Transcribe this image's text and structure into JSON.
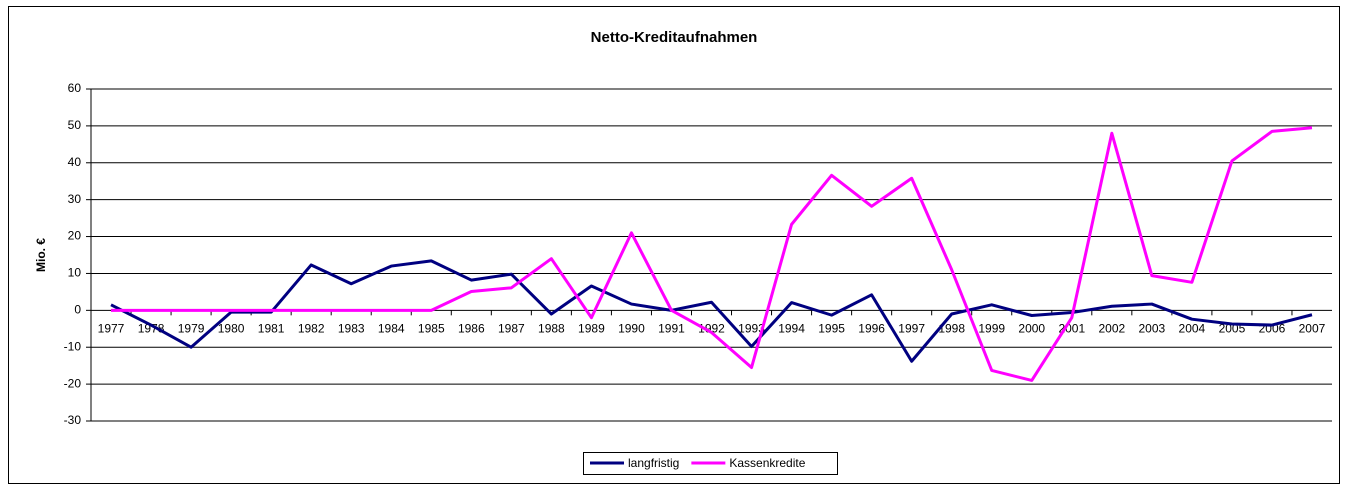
{
  "chart_data": {
    "type": "line",
    "title": "Netto-Kreditaufnahmen",
    "y_label": "Mio. €",
    "categories": [
      "1977",
      "1978",
      "1979",
      "1980",
      "1981",
      "1982",
      "1983",
      "1984",
      "1985",
      "1986",
      "1987",
      "1988",
      "1989",
      "1990",
      "1991",
      "1992",
      "1993",
      "1994",
      "1995",
      "1996",
      "1997",
      "1998",
      "1999",
      "2000",
      "2001",
      "2002",
      "2003",
      "2004",
      "2005",
      "2006",
      "2007"
    ],
    "series": [
      {
        "name": "langfristig",
        "color": "#000080",
        "values": [
          1.5,
          -4,
          -10,
          -0.5,
          -0.5,
          12.3,
          7.2,
          12,
          13.4,
          8.2,
          9.8,
          -1,
          6.6,
          1.7,
          0,
          2.2,
          -9.8,
          2.1,
          -1.3,
          4.2,
          -13.8,
          -1,
          1.5,
          -1.4,
          -0.6,
          1.1,
          1.7,
          -2.4,
          -3.7,
          -4,
          -1.2
        ]
      },
      {
        "name": "Kassenkredite",
        "color": "#ff00ff",
        "values": [
          0,
          0,
          0,
          0,
          0,
          0,
          0,
          0,
          0,
          5.1,
          6.1,
          14,
          -2,
          21,
          0,
          -6,
          -15.5,
          23.3,
          36.6,
          28.2,
          35.8,
          11,
          -16.3,
          -19,
          -2,
          48,
          9.4,
          7.6,
          40.5,
          48.5,
          49.5
        ]
      }
    ],
    "ylim": [
      -30,
      60
    ],
    "yticks": [
      -30,
      -20,
      -10,
      0,
      10,
      20,
      30,
      40,
      50,
      60
    ],
    "grid": true,
    "legend": "bottom"
  }
}
